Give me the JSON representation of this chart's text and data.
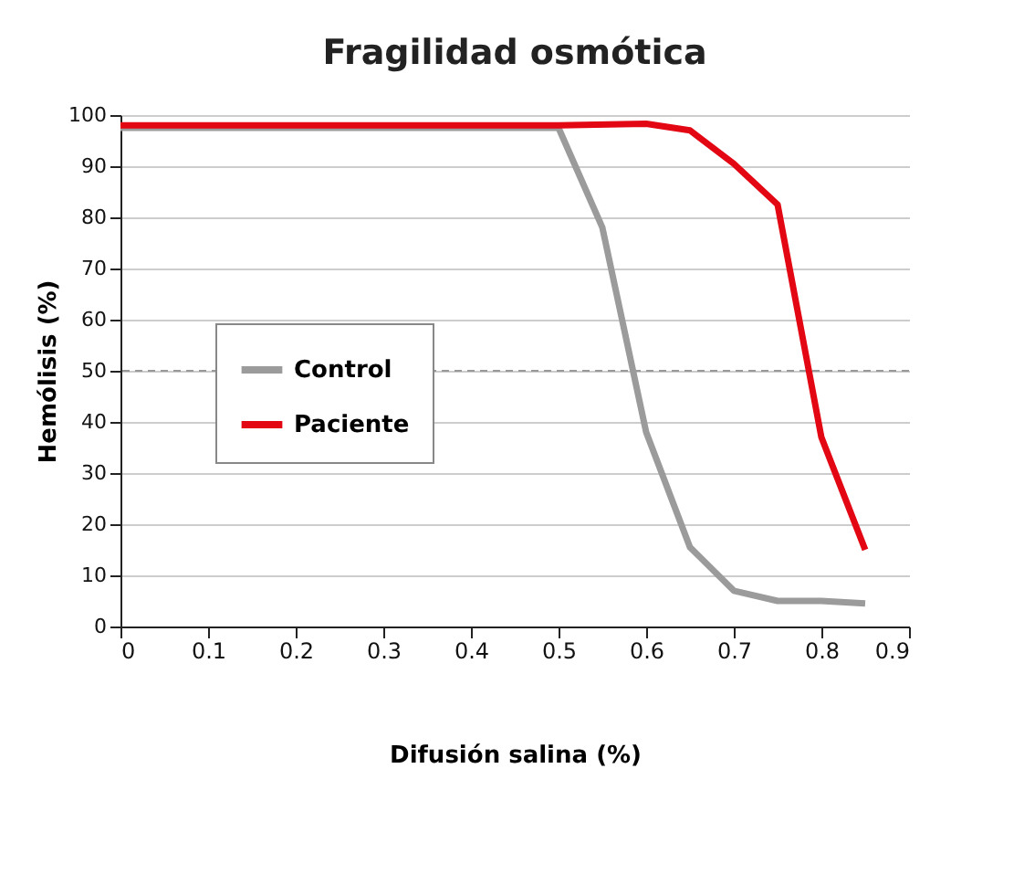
{
  "chart_data": {
    "type": "line",
    "title": "Fragilidad osmótica",
    "xlabel": "Difusión salina (%)",
    "ylabel": "Hemólisis (%)",
    "series": [
      {
        "name": "Control",
        "color": "#9b9b9b",
        "x": [
          0,
          0.5,
          0.55,
          0.6,
          0.65,
          0.7,
          0.75,
          0.8,
          0.85
        ],
        "values": [
          97.5,
          97.5,
          78,
          38,
          15.5,
          7,
          5,
          5,
          4.5
        ]
      },
      {
        "name": "Paciente",
        "color": "#e30613",
        "x": [
          0,
          0.25,
          0.5,
          0.6,
          0.65,
          0.7,
          0.75,
          0.8,
          0.85
        ],
        "values": [
          98,
          98,
          98,
          98.3,
          97,
          90.5,
          82.5,
          37,
          15
        ]
      }
    ],
    "xlim": [
      0,
      0.9
    ],
    "xticks": [
      0,
      0.1,
      0.2,
      0.3,
      0.4,
      0.5,
      0.6,
      0.7,
      0.8,
      0.9
    ],
    "ylim": [
      0,
      100
    ],
    "yticks": [
      0,
      10,
      20,
      30,
      40,
      50,
      60,
      70,
      80,
      90,
      100
    ],
    "grid": "y",
    "legend": "left",
    "marker": "none",
    "line_style": "solid",
    "ref_lines": [
      {
        "axis": "y",
        "value": 50,
        "color": "#999999",
        "line_style": "dashed"
      }
    ]
  }
}
